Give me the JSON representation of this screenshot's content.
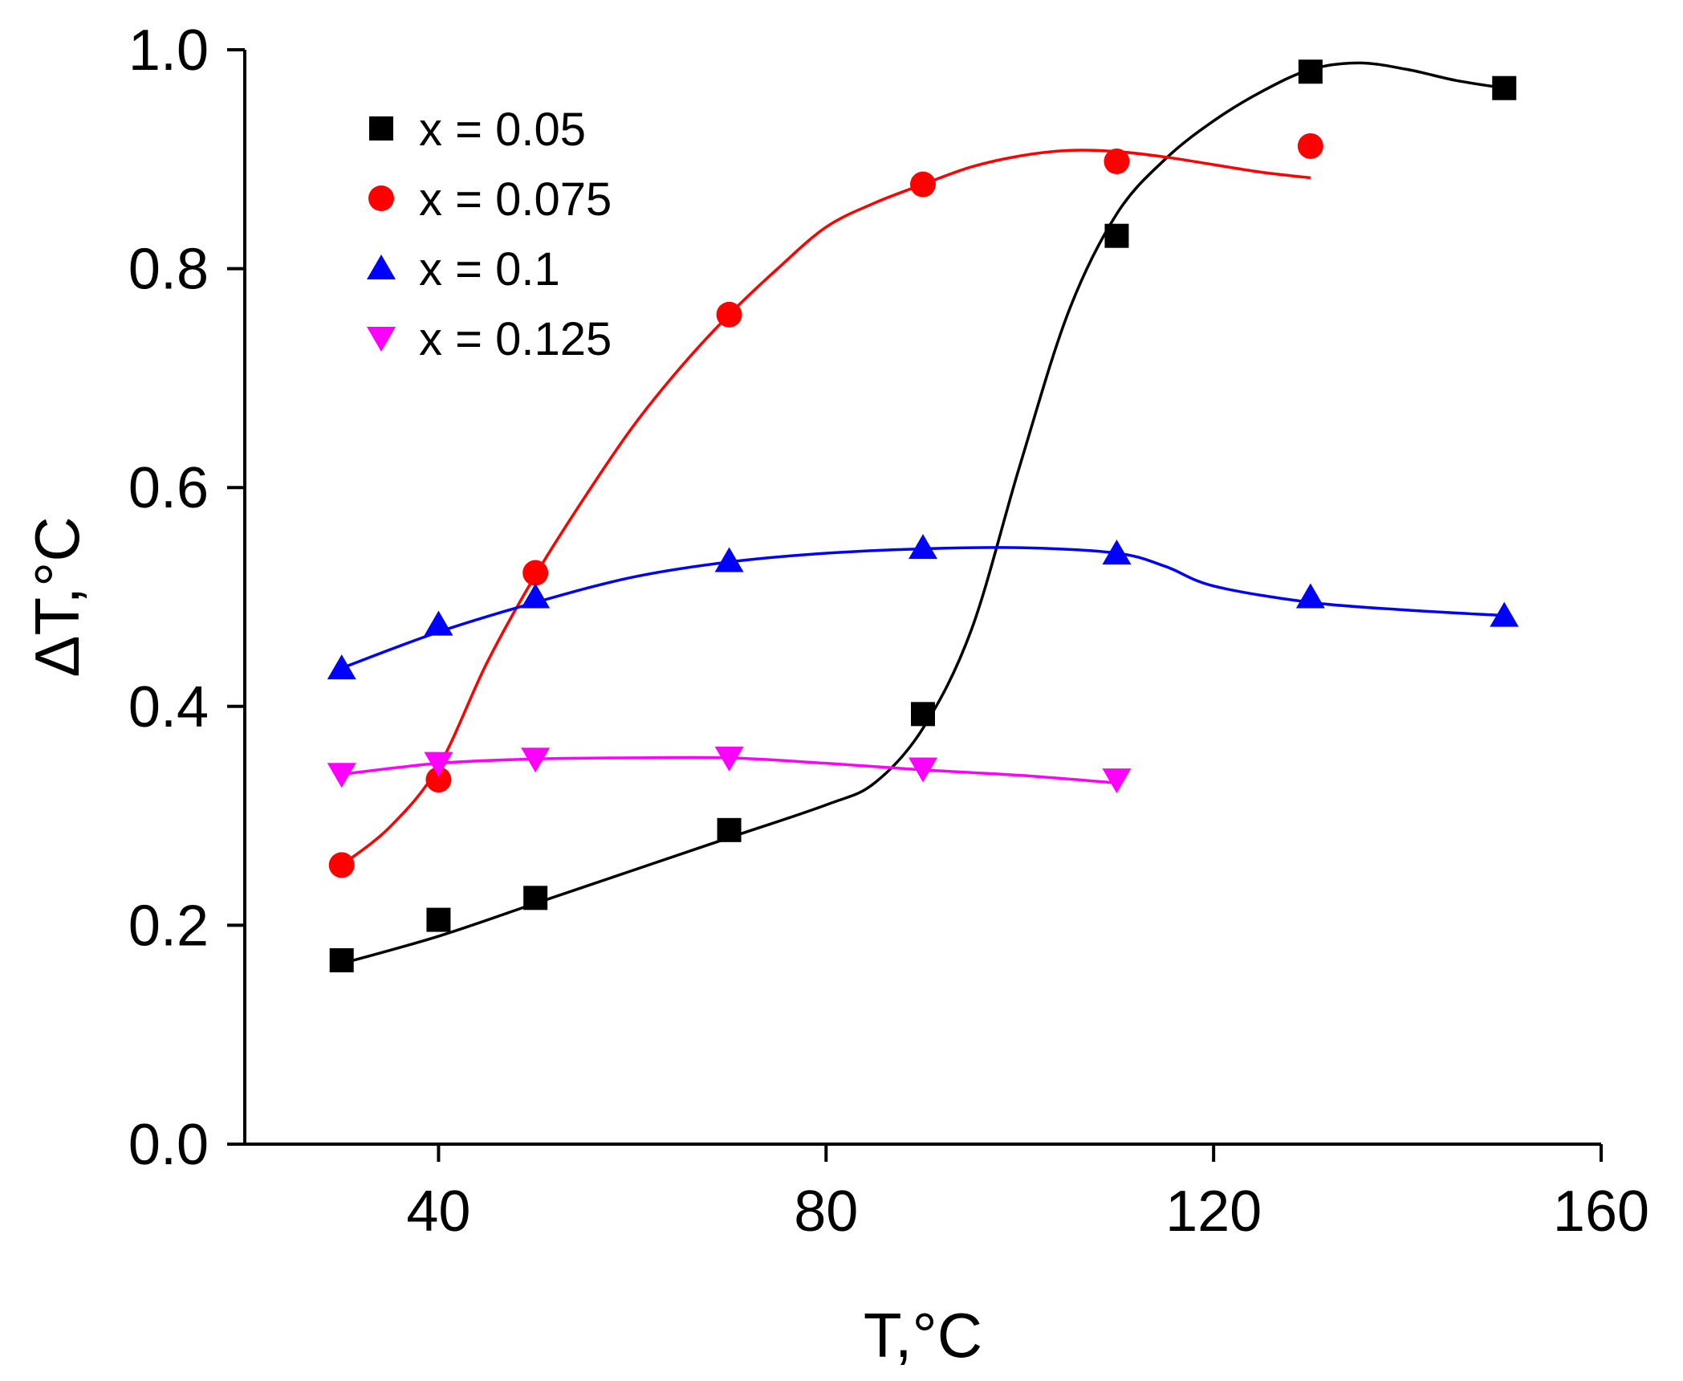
{
  "chart_data": {
    "type": "scatter",
    "title": "",
    "xlabel": "T,°C",
    "ylabel": "ΔT,°C",
    "xlim": [
      20,
      160
    ],
    "ylim": [
      0.0,
      1.0
    ],
    "x_ticks": [
      {
        "value": 40,
        "label": "40"
      },
      {
        "value": 80,
        "label": "80"
      },
      {
        "value": 120,
        "label": "120"
      },
      {
        "value": 160,
        "label": "160"
      }
    ],
    "y_ticks": [
      {
        "value": 0.0,
        "label": "0.0"
      },
      {
        "value": 0.2,
        "label": "0.2"
      },
      {
        "value": 0.4,
        "label": "0.4"
      },
      {
        "value": 0.6,
        "label": "0.6"
      },
      {
        "value": 0.8,
        "label": "0.8"
      },
      {
        "value": 1.0,
        "label": "1.0"
      }
    ],
    "legend_position": "top-left",
    "series": [
      {
        "name": "x = 0.05",
        "color": "#000000",
        "marker": "square",
        "x": [
          30,
          40,
          50,
          70,
          90,
          110,
          130,
          150
        ],
        "y": [
          0.168,
          0.205,
          0.225,
          0.287,
          0.393,
          0.83,
          0.98,
          0.965
        ],
        "fit": {
          "x": [
            30,
            40,
            50,
            60,
            70,
            80,
            85,
            90,
            95,
            100,
            105,
            110,
            115,
            120,
            125,
            130,
            135,
            140,
            145,
            150
          ],
          "y": [
            0.165,
            0.19,
            0.22,
            0.25,
            0.28,
            0.31,
            0.33,
            0.38,
            0.47,
            0.62,
            0.76,
            0.85,
            0.9,
            0.935,
            0.962,
            0.982,
            0.988,
            0.982,
            0.972,
            0.965
          ]
        }
      },
      {
        "name": "x = 0.075",
        "color": "#ff0000",
        "marker": "circle",
        "x": [
          30,
          40,
          50,
          70,
          90,
          110,
          130
        ],
        "y": [
          0.255,
          0.333,
          0.522,
          0.758,
          0.877,
          0.898,
          0.912
        ],
        "fit": {
          "x": [
            30,
            35,
            40,
            45,
            50,
            55,
            60,
            65,
            70,
            75,
            80,
            85,
            90,
            95,
            100,
            105,
            110,
            115,
            120,
            125,
            130
          ],
          "y": [
            0.255,
            0.29,
            0.345,
            0.44,
            0.52,
            0.59,
            0.655,
            0.71,
            0.758,
            0.8,
            0.838,
            0.86,
            0.877,
            0.893,
            0.903,
            0.908,
            0.907,
            0.902,
            0.895,
            0.888,
            0.883
          ]
        }
      },
      {
        "name": "x = 0.1",
        "color": "#0000ff",
        "marker": "triangle-up",
        "x": [
          30,
          40,
          50,
          70,
          90,
          110,
          130,
          150
        ],
        "y": [
          0.435,
          0.475,
          0.5,
          0.533,
          0.545,
          0.54,
          0.5,
          0.483
        ],
        "fit": {
          "x": [
            30,
            40,
            50,
            60,
            70,
            80,
            90,
            100,
            110,
            115,
            120,
            130,
            140,
            150
          ],
          "y": [
            0.435,
            0.468,
            0.495,
            0.518,
            0.532,
            0.54,
            0.544,
            0.545,
            0.54,
            0.528,
            0.51,
            0.495,
            0.488,
            0.483
          ]
        }
      },
      {
        "name": "x = 0.125",
        "color": "#ff00ff",
        "marker": "triangle-down",
        "x": [
          30,
          40,
          50,
          70,
          90,
          110
        ],
        "y": [
          0.338,
          0.348,
          0.352,
          0.353,
          0.343,
          0.333
        ],
        "fit": {
          "x": [
            30,
            40,
            50,
            60,
            70,
            80,
            90,
            100,
            110
          ],
          "y": [
            0.338,
            0.348,
            0.352,
            0.353,
            0.353,
            0.348,
            0.342,
            0.337,
            0.33
          ]
        }
      }
    ]
  }
}
